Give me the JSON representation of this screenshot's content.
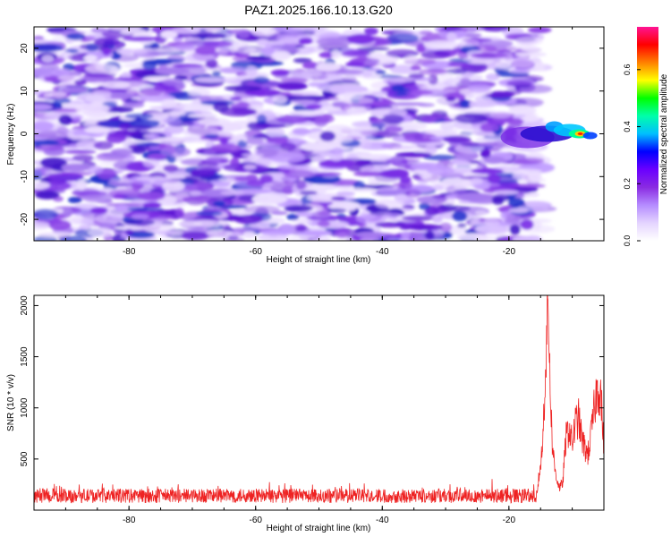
{
  "title": "PAZ1.2025.166.10.13.G20",
  "chart_data": [
    {
      "type": "heatmap",
      "title": "PAZ1.2025.166.10.13.G20",
      "xlabel": "Height of straight line (km)",
      "ylabel": "Frequency (Hz)",
      "xlim": [
        -95,
        -5
      ],
      "ylim": [
        -25,
        25
      ],
      "x_ticks": [
        -80,
        -60,
        -40,
        -20
      ],
      "x_tick_labels": [
        "-80",
        "-60",
        "-40",
        "-20"
      ],
      "y_ticks": [
        -20,
        -10,
        0,
        10,
        20
      ],
      "y_tick_labels": [
        "-20",
        "-10",
        "0",
        "10",
        "20"
      ],
      "colorbar": {
        "label": "Normalized spectral amplitude",
        "range": [
          0,
          0.75
        ],
        "ticks": [
          0,
          0.2,
          0.4,
          0.6
        ],
        "tick_labels": [
          "0.0",
          "0.2",
          "0.4",
          "0.6"
        ],
        "colors": [
          "#ffffff",
          "#e4d4ff",
          "#b58cff",
          "#8a2be2",
          "#6a00ff",
          "#0000ff",
          "#00bfff",
          "#00ffaa",
          "#00ff00",
          "#ffff00",
          "#ff8000",
          "#ff0000",
          "#ff1493"
        ]
      },
      "features": [
        {
          "x_range": [
            -95,
            -15
          ],
          "freq_range": [
            -25,
            25
          ],
          "amplitude": "0.0-0.15",
          "note": "diffuse"
        },
        {
          "x_center": -10,
          "freq_center": 0,
          "freq_halfwidth": 3,
          "peak_amplitude": 0.5
        }
      ]
    },
    {
      "type": "line",
      "xlabel": "Height of straight line (km)",
      "ylabel": "SNR (10 * v/v)",
      "xlim": [
        -95,
        -5
      ],
      "ylim": [
        0,
        2100
      ],
      "x_ticks": [
        -80,
        -60,
        -40,
        -20
      ],
      "x_tick_labels": [
        "-80",
        "-60",
        "-40",
        "-20"
      ],
      "y_ticks": [
        500,
        1000,
        1500,
        2000
      ],
      "y_tick_labels": [
        "500",
        "1000",
        "1500",
        "2000"
      ],
      "color": "#ee2222",
      "series": [
        {
          "x": [
            -95,
            -90,
            -85,
            -80,
            -75,
            -70,
            -65,
            -60,
            -55,
            -50,
            -45,
            -40,
            -35,
            -30,
            -25,
            -20,
            -17,
            -15.5,
            -14.7,
            -14.1,
            -13.8,
            -13.5,
            -13.2,
            -12.8,
            -12.4,
            -12.0,
            -11.5,
            -11.0,
            -10.5,
            -10.0,
            -9.5,
            -9.0,
            -8.5,
            -8.0,
            -7.5,
            -7.0,
            -6.5,
            -6.0,
            -5.5,
            -5.0
          ],
          "y": [
            150,
            145,
            150,
            148,
            150,
            145,
            150,
            148,
            145,
            150,
            147,
            145,
            150,
            148,
            145,
            150,
            155,
            200,
            600,
            1600,
            2050,
            1300,
            700,
            420,
            300,
            220,
            260,
            700,
            800,
            650,
            850,
            900,
            700,
            600,
            550,
            750,
            1000,
            1200,
            1150,
            600
          ]
        }
      ],
      "noise_band": [
        70,
        270
      ]
    }
  ]
}
